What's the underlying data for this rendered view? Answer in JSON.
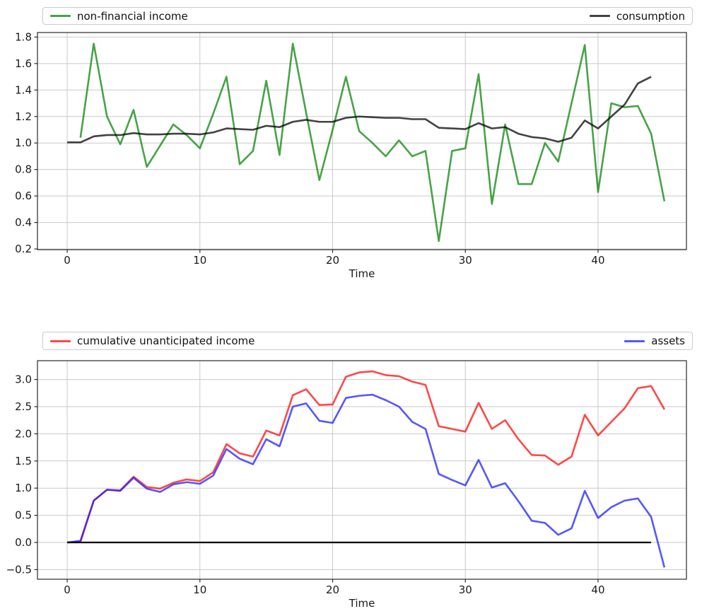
{
  "page": {
    "background": "#ffffff",
    "grid_color": "#c9c9c9",
    "spine_color": "#2a2a2a"
  },
  "chart_data": [
    {
      "type": "line",
      "title": "",
      "xlabel": "Time",
      "ylabel": "",
      "grid": true,
      "legend_position": "expanded row above axes",
      "xlim": [
        -2.24,
        46.66
      ],
      "ylim": [
        0.195,
        1.834
      ],
      "xticks": {
        "values": [
          0,
          10,
          20,
          30,
          40
        ],
        "labels": [
          "0",
          "10",
          "20",
          "30",
          "40"
        ]
      },
      "yticks": {
        "values": [
          0.2,
          0.4,
          0.6,
          0.8,
          1.0,
          1.2,
          1.4,
          1.6,
          1.8
        ],
        "labels": [
          "0.2",
          "0.4",
          "0.6",
          "0.8",
          "1.0",
          "1.2",
          "1.4",
          "1.6",
          "1.8"
        ]
      },
      "series": [
        {
          "name": "non-financial income",
          "color": "#008000",
          "opacity": 0.72,
          "x_start": 1,
          "values": [
            1.04,
            1.75,
            1.2,
            0.99,
            1.25,
            0.82,
            0.98,
            1.14,
            1.06,
            0.96,
            1.22,
            1.5,
            0.84,
            0.94,
            1.47,
            0.91,
            1.75,
            1.23,
            0.72,
            1.1,
            1.5,
            1.09,
            1.0,
            0.9,
            1.02,
            0.9,
            0.94,
            0.26,
            0.94,
            0.96,
            1.52,
            0.54,
            1.14,
            0.69,
            0.69,
            1.0,
            0.86,
            1.3,
            1.74,
            0.63,
            1.3,
            1.27,
            1.28,
            1.07,
            0.56
          ]
        },
        {
          "name": "consumption",
          "color": "#000000",
          "opacity": 0.74,
          "x_start": 0,
          "values": [
            1.005,
            1.005,
            1.05,
            1.06,
            1.06,
            1.075,
            1.065,
            1.065,
            1.07,
            1.07,
            1.065,
            1.08,
            1.11,
            1.105,
            1.1,
            1.13,
            1.12,
            1.16,
            1.175,
            1.16,
            1.16,
            1.19,
            1.2,
            1.195,
            1.19,
            1.19,
            1.18,
            1.18,
            1.115,
            1.11,
            1.105,
            1.15,
            1.11,
            1.12,
            1.07,
            1.045,
            1.035,
            1.01,
            1.04,
            1.17,
            1.11,
            1.2,
            1.29,
            1.45,
            1.5
          ]
        }
      ]
    },
    {
      "type": "line",
      "title": "",
      "xlabel": "Time",
      "ylabel": "",
      "grid": true,
      "legend_position": "expanded row above axes",
      "xlim": [
        -2.24,
        46.66
      ],
      "ylim": [
        -0.677,
        3.346
      ],
      "xticks": {
        "values": [
          0,
          10,
          20,
          30,
          40
        ],
        "labels": [
          "0",
          "10",
          "20",
          "30",
          "40"
        ]
      },
      "yticks": {
        "values": [
          -0.5,
          0.0,
          0.5,
          1.0,
          1.5,
          2.0,
          2.5,
          3.0
        ],
        "labels": [
          "−0.5",
          "0.0",
          "0.5",
          "1.0",
          "1.5",
          "2.0",
          "2.5",
          "3.0"
        ]
      },
      "series": [
        {
          "name": "cumulative unanticipated income",
          "color": "#ff1414",
          "opacity": 0.78,
          "x_start": 0,
          "values": [
            0.0,
            0.01,
            0.77,
            0.97,
            0.96,
            1.21,
            1.02,
            0.99,
            1.1,
            1.16,
            1.13,
            1.29,
            1.81,
            1.64,
            1.58,
            2.06,
            1.97,
            2.71,
            2.82,
            2.53,
            2.54,
            3.05,
            3.13,
            3.15,
            3.08,
            3.06,
            2.96,
            2.9,
            2.14,
            2.09,
            2.04,
            2.57,
            2.09,
            2.25,
            1.9,
            1.61,
            1.6,
            1.43,
            1.58,
            2.35,
            1.97,
            2.22,
            2.47,
            2.84,
            2.88,
            2.45
          ]
        },
        {
          "name": "assets",
          "color": "#1e1eff",
          "opacity": 0.75,
          "x_start": 0,
          "values": [
            0.0,
            0.03,
            0.77,
            0.97,
            0.95,
            1.19,
            0.99,
            0.93,
            1.07,
            1.11,
            1.08,
            1.23,
            1.72,
            1.54,
            1.44,
            1.9,
            1.77,
            2.5,
            2.56,
            2.24,
            2.2,
            2.66,
            2.7,
            2.72,
            2.62,
            2.5,
            2.22,
            2.09,
            1.26,
            1.15,
            1.05,
            1.52,
            1.01,
            1.09,
            0.76,
            0.4,
            0.36,
            0.14,
            0.26,
            0.95,
            0.45,
            0.65,
            0.77,
            0.81,
            0.47,
            -0.46
          ]
        },
        {
          "name": "zero-line",
          "color": "#000000",
          "opacity": 1,
          "show_in_legend": false,
          "x": [
            0,
            44
          ],
          "values": [
            0,
            0
          ]
        }
      ]
    }
  ]
}
